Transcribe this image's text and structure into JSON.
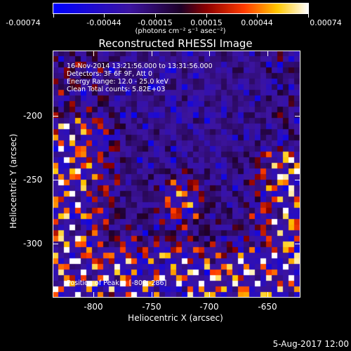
{
  "colorbar": {
    "labels": [
      "-0.00074",
      "-0.00044",
      "-0.00015",
      "0.00015",
      "0.00044",
      "0.00074"
    ],
    "units": "(photons cm⁻² s⁻¹ asec⁻²)"
  },
  "title": "Reconstructed RHESSI Image",
  "info": {
    "time": "16-Nov-2014 13:21:56.000 to 13:31:56.000",
    "detectors": "Detectors: 3F 6F 9F, Att 0",
    "energy": "Energy Range: 12.0 - 25.0 keV",
    "clean": "Clean     Total counts: 5.82E+03"
  },
  "peak": "Position of Peak = [-808,-286]",
  "axes": {
    "xlabel": "Heliocentric X (arcsec)",
    "ylabel": "Heliocentric Y (arcsec)",
    "xticks": [
      "-800",
      "-750",
      "-700",
      "-650"
    ],
    "yticks": [
      "-200",
      "-250",
      "-300"
    ]
  },
  "datestamp": "5-Aug-2017 12:00"
}
